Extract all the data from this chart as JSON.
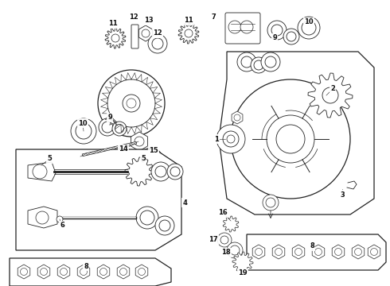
{
  "bg_color": "#ffffff",
  "line_color": "#222222",
  "label_color": "#111111",
  "fig_width": 4.9,
  "fig_height": 3.6,
  "dpi": 100
}
